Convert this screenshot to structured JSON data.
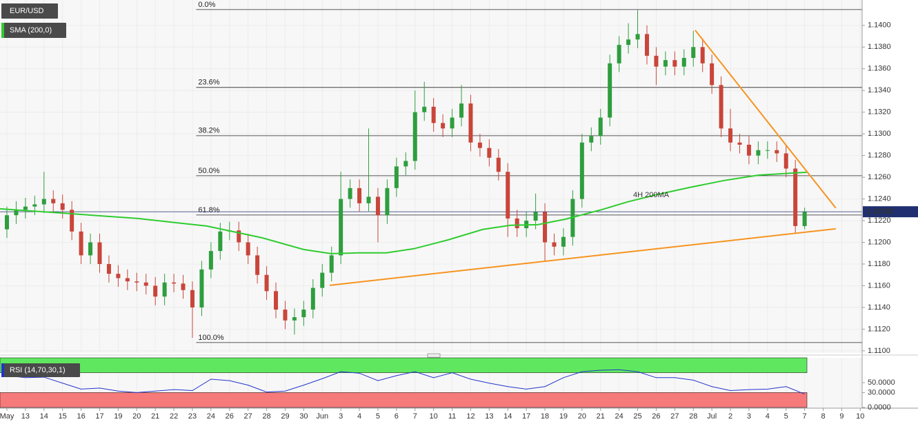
{
  "chart_data": {
    "type": "candlestick",
    "title": "EUR/USD",
    "up_color": "#2e9e3e",
    "down_color": "#c9453a",
    "x": [
      -0.5,
      0,
      0.5,
      1,
      1.5,
      2,
      2.5,
      3,
      3.5,
      4,
      4.5,
      5,
      5.5,
      6,
      6.5,
      7,
      7.5,
      8,
      8.5,
      9,
      9.5,
      10,
      10.5,
      11,
      11.5,
      12,
      12.5,
      13,
      13.5,
      14,
      14.5,
      15,
      15.5,
      16,
      16.5,
      17,
      17.5,
      18,
      18.5,
      19,
      19.5,
      20,
      20.5,
      21,
      21.5,
      22,
      22.5,
      23,
      23.5,
      24,
      24.5,
      25,
      25.5,
      26,
      26.5,
      27,
      27.5,
      28,
      28.5,
      29,
      29.5,
      30,
      30.5,
      31,
      31.5,
      32,
      32.5,
      33,
      33.5,
      34,
      34.5,
      35,
      35.5,
      36,
      36.5,
      37,
      37.5,
      38,
      38.5,
      39,
      39.5,
      40,
      40.5,
      41,
      41.5,
      42,
      42.5,
      43
    ],
    "open": [
      1.1205,
      1.1212,
      1.1225,
      1.123,
      1.1233,
      1.1235,
      1.124,
      1.1236,
      1.123,
      1.121,
      1.1188,
      1.12,
      1.118,
      1.1171,
      1.1167,
      1.1164,
      1.1163,
      1.116,
      1.115,
      1.1163,
      1.1162,
      1.1156,
      1.114,
      1.1175,
      1.1192,
      1.121,
      1.1211,
      1.12,
      1.1188,
      1.117,
      1.1155,
      1.1138,
      1.1128,
      1.1131,
      1.1138,
      1.1158,
      1.1172,
      1.1188,
      1.124,
      1.125,
      1.1236,
      1.1242,
      1.1225,
      1.125,
      1.127,
      1.1275,
      1.132,
      1.1325,
      1.131,
      1.1305,
      1.1315,
      1.1328,
      1.1292,
      1.1287,
      1.1278,
      1.1265,
      1.1222,
      1.1213,
      1.122,
      1.1228,
      1.12,
      1.1196,
      1.1205,
      1.124,
      1.1292,
      1.1298,
      1.1315,
      1.1365,
      1.1382,
      1.1387,
      1.1392,
      1.1372,
      1.1362,
      1.1368,
      1.1362,
      1.137,
      1.138,
      1.1365,
      1.1345,
      1.1305,
      1.1292,
      1.129,
      1.128,
      1.1285,
      1.1285,
      1.1282,
      1.1268,
      1.1215
    ],
    "high": [
      1.122,
      1.1233,
      1.1238,
      1.1241,
      1.1243,
      1.1265,
      1.1248,
      1.1244,
      1.1238,
      1.1218,
      1.1208,
      1.1208,
      1.1188,
      1.1179,
      1.1175,
      1.1172,
      1.1171,
      1.1168,
      1.1171,
      1.1171,
      1.117,
      1.1164,
      1.1183,
      1.12,
      1.1218,
      1.1219,
      1.1219,
      1.1208,
      1.1196,
      1.1178,
      1.1163,
      1.1146,
      1.1139,
      1.1146,
      1.1166,
      1.118,
      1.1196,
      1.1265,
      1.1258,
      1.1258,
      1.1305,
      1.125,
      1.1258,
      1.1278,
      1.1283,
      1.134,
      1.1348,
      1.1333,
      1.1318,
      1.1323,
      1.1345,
      1.1336,
      1.13,
      1.1295,
      1.1286,
      1.1273,
      1.123,
      1.1228,
      1.1245,
      1.1236,
      1.1208,
      1.1213,
      1.1248,
      1.13,
      1.1306,
      1.1323,
      1.1373,
      1.139,
      1.1402,
      1.1414,
      1.14,
      1.138,
      1.1376,
      1.1376,
      1.1378,
      1.1395,
      1.1388,
      1.1373,
      1.1353,
      1.1323,
      1.13,
      1.1298,
      1.1293,
      1.1293,
      1.1293,
      1.129,
      1.1276,
      1.1232
    ],
    "low": [
      1.1197,
      1.1204,
      1.1217,
      1.1222,
      1.1225,
      1.1227,
      1.1228,
      1.1222,
      1.1202,
      1.118,
      1.118,
      1.1172,
      1.1163,
      1.1159,
      1.1156,
      1.1155,
      1.1152,
      1.1142,
      1.1142,
      1.1154,
      1.1148,
      1.1112,
      1.1132,
      1.1167,
      1.1184,
      1.1202,
      1.1192,
      1.118,
      1.1162,
      1.1147,
      1.113,
      1.112,
      1.1115,
      1.1123,
      1.113,
      1.115,
      1.1164,
      1.118,
      1.1232,
      1.1228,
      1.1228,
      1.12,
      1.1217,
      1.1242,
      1.1262,
      1.1267,
      1.1312,
      1.1302,
      1.1297,
      1.1297,
      1.1307,
      1.1284,
      1.1279,
      1.127,
      1.1257,
      1.1205,
      1.1205,
      1.1205,
      1.1212,
      1.1182,
      1.1188,
      1.1188,
      1.1197,
      1.1232,
      1.1284,
      1.129,
      1.1307,
      1.1357,
      1.1374,
      1.1379,
      1.1364,
      1.1345,
      1.1354,
      1.1354,
      1.1354,
      1.1362,
      1.1357,
      1.1337,
      1.1297,
      1.1284,
      1.1282,
      1.1272,
      1.1272,
      1.1277,
      1.1274,
      1.126,
      1.1208,
      1.1212
    ],
    "close": [
      1.1212,
      1.1225,
      1.123,
      1.1233,
      1.1235,
      1.124,
      1.1236,
      1.123,
      1.121,
      1.1188,
      1.12,
      1.118,
      1.1171,
      1.1167,
      1.1164,
      1.1163,
      1.116,
      1.115,
      1.1163,
      1.1162,
      1.1156,
      1.114,
      1.1175,
      1.1192,
      1.121,
      1.1211,
      1.12,
      1.1188,
      1.117,
      1.1155,
      1.1138,
      1.1128,
      1.1131,
      1.1138,
      1.1158,
      1.1172,
      1.1188,
      1.124,
      1.125,
      1.1236,
      1.1242,
      1.1225,
      1.125,
      1.127,
      1.1275,
      1.132,
      1.1325,
      1.131,
      1.1305,
      1.1315,
      1.1328,
      1.1292,
      1.1287,
      1.1278,
      1.1265,
      1.1222,
      1.1213,
      1.122,
      1.1228,
      1.12,
      1.1196,
      1.1205,
      1.124,
      1.1292,
      1.1298,
      1.1315,
      1.1365,
      1.1382,
      1.1387,
      1.1392,
      1.1372,
      1.1362,
      1.1368,
      1.1362,
      1.137,
      1.138,
      1.1365,
      1.1345,
      1.1305,
      1.1292,
      1.129,
      1.128,
      1.1285,
      1.1285,
      1.1282,
      1.1268,
      1.1215,
      1.1228
    ],
    "xlim": [
      -0.372,
      46.1
    ],
    "xticks": [
      {
        "value": 0,
        "label": "May"
      },
      {
        "value": 1,
        "label": "13"
      },
      {
        "value": 2,
        "label": "14"
      },
      {
        "value": 3,
        "label": "15"
      },
      {
        "value": 4,
        "label": "16"
      },
      {
        "value": 5,
        "label": "17"
      },
      {
        "value": 6,
        "label": "19"
      },
      {
        "value": 7,
        "label": "20"
      },
      {
        "value": 8,
        "label": "21"
      },
      {
        "value": 9,
        "label": "22"
      },
      {
        "value": 10,
        "label": "23"
      },
      {
        "value": 11,
        "label": "24"
      },
      {
        "value": 12,
        "label": "26"
      },
      {
        "value": 13,
        "label": "27"
      },
      {
        "value": 14,
        "label": "28"
      },
      {
        "value": 15,
        "label": "29"
      },
      {
        "value": 16,
        "label": "30"
      },
      {
        "value": 17,
        "label": "Jun"
      },
      {
        "value": 18,
        "label": "3"
      },
      {
        "value": 19,
        "label": "4"
      },
      {
        "value": 20,
        "label": "5"
      },
      {
        "value": 21,
        "label": "6"
      },
      {
        "value": 22,
        "label": "7"
      },
      {
        "value": 23,
        "label": "10"
      },
      {
        "value": 24,
        "label": "11"
      },
      {
        "value": 25,
        "label": "12"
      },
      {
        "value": 26,
        "label": "13"
      },
      {
        "value": 27,
        "label": "14"
      },
      {
        "value": 28,
        "label": "17"
      },
      {
        "value": 29,
        "label": "18"
      },
      {
        "value": 30,
        "label": "19"
      },
      {
        "value": 31,
        "label": "20"
      },
      {
        "value": 32,
        "label": "21"
      },
      {
        "value": 33,
        "label": "24"
      },
      {
        "value": 34,
        "label": "25"
      },
      {
        "value": 35,
        "label": "26"
      },
      {
        "value": 36,
        "label": "27"
      },
      {
        "value": 37,
        "label": "28"
      },
      {
        "value": 38,
        "label": "Jul"
      },
      {
        "value": 39,
        "label": "2"
      },
      {
        "value": 40,
        "label": "3"
      },
      {
        "value": 41,
        "label": "4"
      },
      {
        "value": 42,
        "label": "5"
      },
      {
        "value": 43,
        "label": "7"
      },
      {
        "value": 44,
        "label": "8"
      },
      {
        "value": 45,
        "label": "9"
      },
      {
        "value": 46,
        "label": "10"
      }
    ],
    "ylim": [
      1.1098,
      1.14234
    ],
    "yticks": [
      {
        "value": 1.11,
        "label": "1.1100"
      },
      {
        "value": 1.112,
        "label": "1.1120"
      },
      {
        "value": 1.114,
        "label": "1.1140"
      },
      {
        "value": 1.116,
        "label": "1.1160"
      },
      {
        "value": 1.118,
        "label": "1.1180"
      },
      {
        "value": 1.12,
        "label": "1.1200"
      },
      {
        "value": 1.122,
        "label": "1.1220"
      },
      {
        "value": 1.124,
        "label": "1.1240"
      },
      {
        "value": 1.126,
        "label": "1.1260"
      },
      {
        "value": 1.128,
        "label": "1.1280"
      },
      {
        "value": 1.13,
        "label": "1.1300"
      },
      {
        "value": 1.132,
        "label": "1.1320"
      },
      {
        "value": 1.134,
        "label": "1.1340"
      },
      {
        "value": 1.136,
        "label": "1.1360"
      },
      {
        "value": 1.138,
        "label": "1.1380"
      },
      {
        "value": 1.14,
        "label": "1.1400"
      }
    ],
    "grid": true,
    "last_price": 1.12282,
    "sma": {
      "name": "SMA (200,0)",
      "color": "#2ecc2e",
      "x": [
        -0.37,
        3.35,
        7.06,
        10.78,
        13.75,
        15.99,
        17.47,
        18.96,
        20.45,
        21.93,
        23.79,
        25.65,
        27.14,
        28.62,
        30.11,
        31.97,
        33.46,
        34.94,
        36.8,
        38.66,
        40.52,
        43.12
      ],
      "values": [
        1.12309,
        1.12265,
        1.1222,
        1.1215,
        1.12042,
        1.11934,
        1.11896,
        1.11903,
        1.11903,
        1.11941,
        1.12023,
        1.12119,
        1.12157,
        1.12163,
        1.12214,
        1.12297,
        1.12373,
        1.12436,
        1.12506,
        1.1257,
        1.1262,
        1.12646
      ],
      "annotation": "4H 200MA"
    },
    "fib": {
      "color": "#222222",
      "start_x": 10.2,
      "levels": [
        {
          "label": "0.0%",
          "value": 1.14146
        },
        {
          "label": "23.6%",
          "value": 1.13428
        },
        {
          "label": "38.2%",
          "value": 1.12983
        },
        {
          "label": "50.0%",
          "value": 1.12614
        },
        {
          "label": "61.8%",
          "value": 1.12252
        },
        {
          "label": "100.0%",
          "value": 1.11076
        }
      ]
    },
    "trendlines": [
      {
        "color": "#f7931e",
        "x": [
          17.4,
          44.68
        ],
        "values": [
          1.11604,
          1.12125
        ]
      },
      {
        "color": "#f7931e",
        "x": [
          37.1,
          44.68
        ],
        "values": [
          1.13956,
          1.12316
        ]
      }
    ],
    "rsi": {
      "name": "RSI (14,70,30,1)",
      "color": "#2233cc",
      "x": [
        0,
        1,
        2,
        3,
        4,
        5,
        6,
        7,
        8,
        9,
        10,
        11,
        12,
        13,
        14,
        15,
        16,
        17,
        18,
        19,
        20,
        21,
        22,
        23,
        24,
        25,
        26,
        27,
        28,
        29,
        30,
        31,
        32,
        33,
        34,
        35,
        36,
        37,
        38,
        39,
        40,
        41,
        42,
        43
      ],
      "values": [
        64,
        60,
        61,
        49,
        37,
        39,
        33,
        30,
        33,
        36,
        34,
        57,
        54,
        45,
        31,
        33,
        45,
        58,
        72,
        69,
        54,
        64,
        72,
        60,
        70,
        57,
        49,
        42,
        37,
        42,
        60,
        72,
        75,
        76,
        72,
        60,
        60,
        55,
        42,
        34,
        36,
        37,
        42,
        27
      ],
      "ylim": [
        0,
        100
      ],
      "yticks": [
        {
          "value": 0,
          "label": "0.0000"
        },
        {
          "value": 30,
          "label": "30.0000"
        },
        {
          "value": 50,
          "label": "50.0000"
        }
      ],
      "overbought": 70,
      "oversold": 30
    }
  }
}
